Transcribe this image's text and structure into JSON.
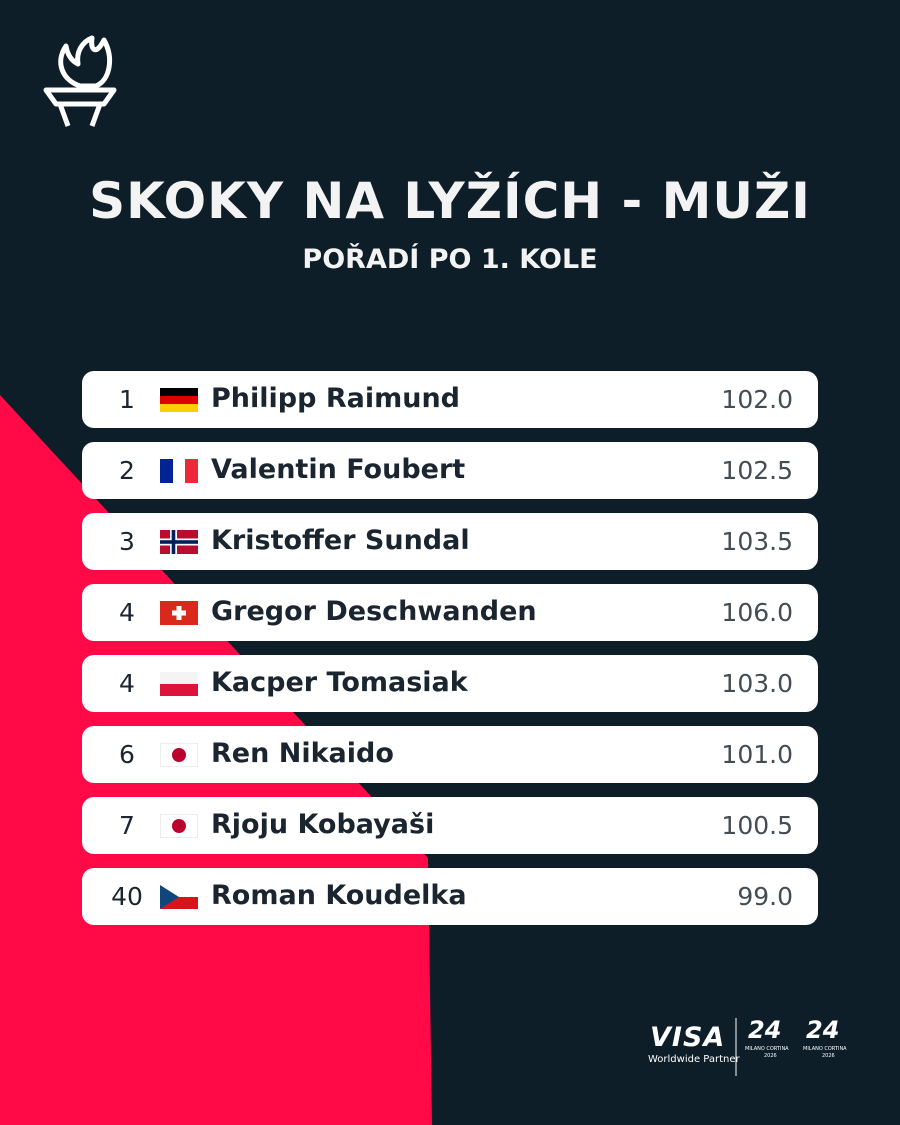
{
  "header": {
    "title": "SKOKY NA LYŽÍCH - MUŽI",
    "subtitle": "POŘADÍ PO 1. KOLE"
  },
  "table": {
    "rows": [
      {
        "rank": 1,
        "name": "Philipp Raimund",
        "distance": "102.0"
      },
      {
        "rank": 2,
        "name": "Valentin Foubert",
        "distance": "102.5"
      },
      {
        "rank": 3,
        "name": "Kristoffer Sundal",
        "distance": "103.5"
      },
      {
        "rank": 4,
        "name": "Gregor Deschwanden",
        "distance": "106.0"
      },
      {
        "rank": 4,
        "name": "Kacper Tomasiak",
        "distance": "103.0"
      },
      {
        "rank": 6,
        "name": "Ren Nikaido",
        "distance": "101.0"
      },
      {
        "rank": 7,
        "name": "Rjoju Kobayaši",
        "distance": "100.5"
      },
      {
        "rank": 40,
        "name": "Roman Koudelka",
        "distance": "99.0"
      }
    ]
  },
  "footer": {
    "sponsor": "VISA",
    "sponsor_tag": "Worldwide Partner",
    "logo_text": "MILANO CORTINA",
    "logo_year": "2026"
  }
}
